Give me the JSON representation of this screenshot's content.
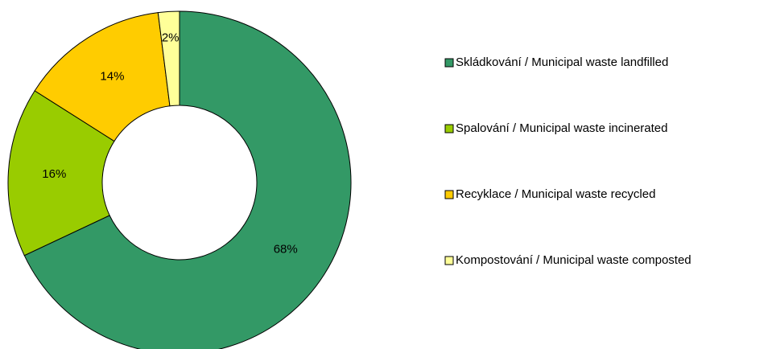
{
  "chart_data": {
    "type": "donut",
    "categories": [
      "Skládkování / Municipal waste landfilled",
      "Spalování / Municipal waste incinerated",
      "Recyklace  / Municipal waste recycled",
      "Kompostování / Municipal waste composted"
    ],
    "values": [
      68,
      16,
      14,
      2
    ],
    "value_labels": [
      "68%",
      "16%",
      "14%",
      "2%"
    ],
    "colors": [
      "#339966",
      "#99cc00",
      "#ffcc00",
      "#ffff99"
    ],
    "legend": "right"
  }
}
